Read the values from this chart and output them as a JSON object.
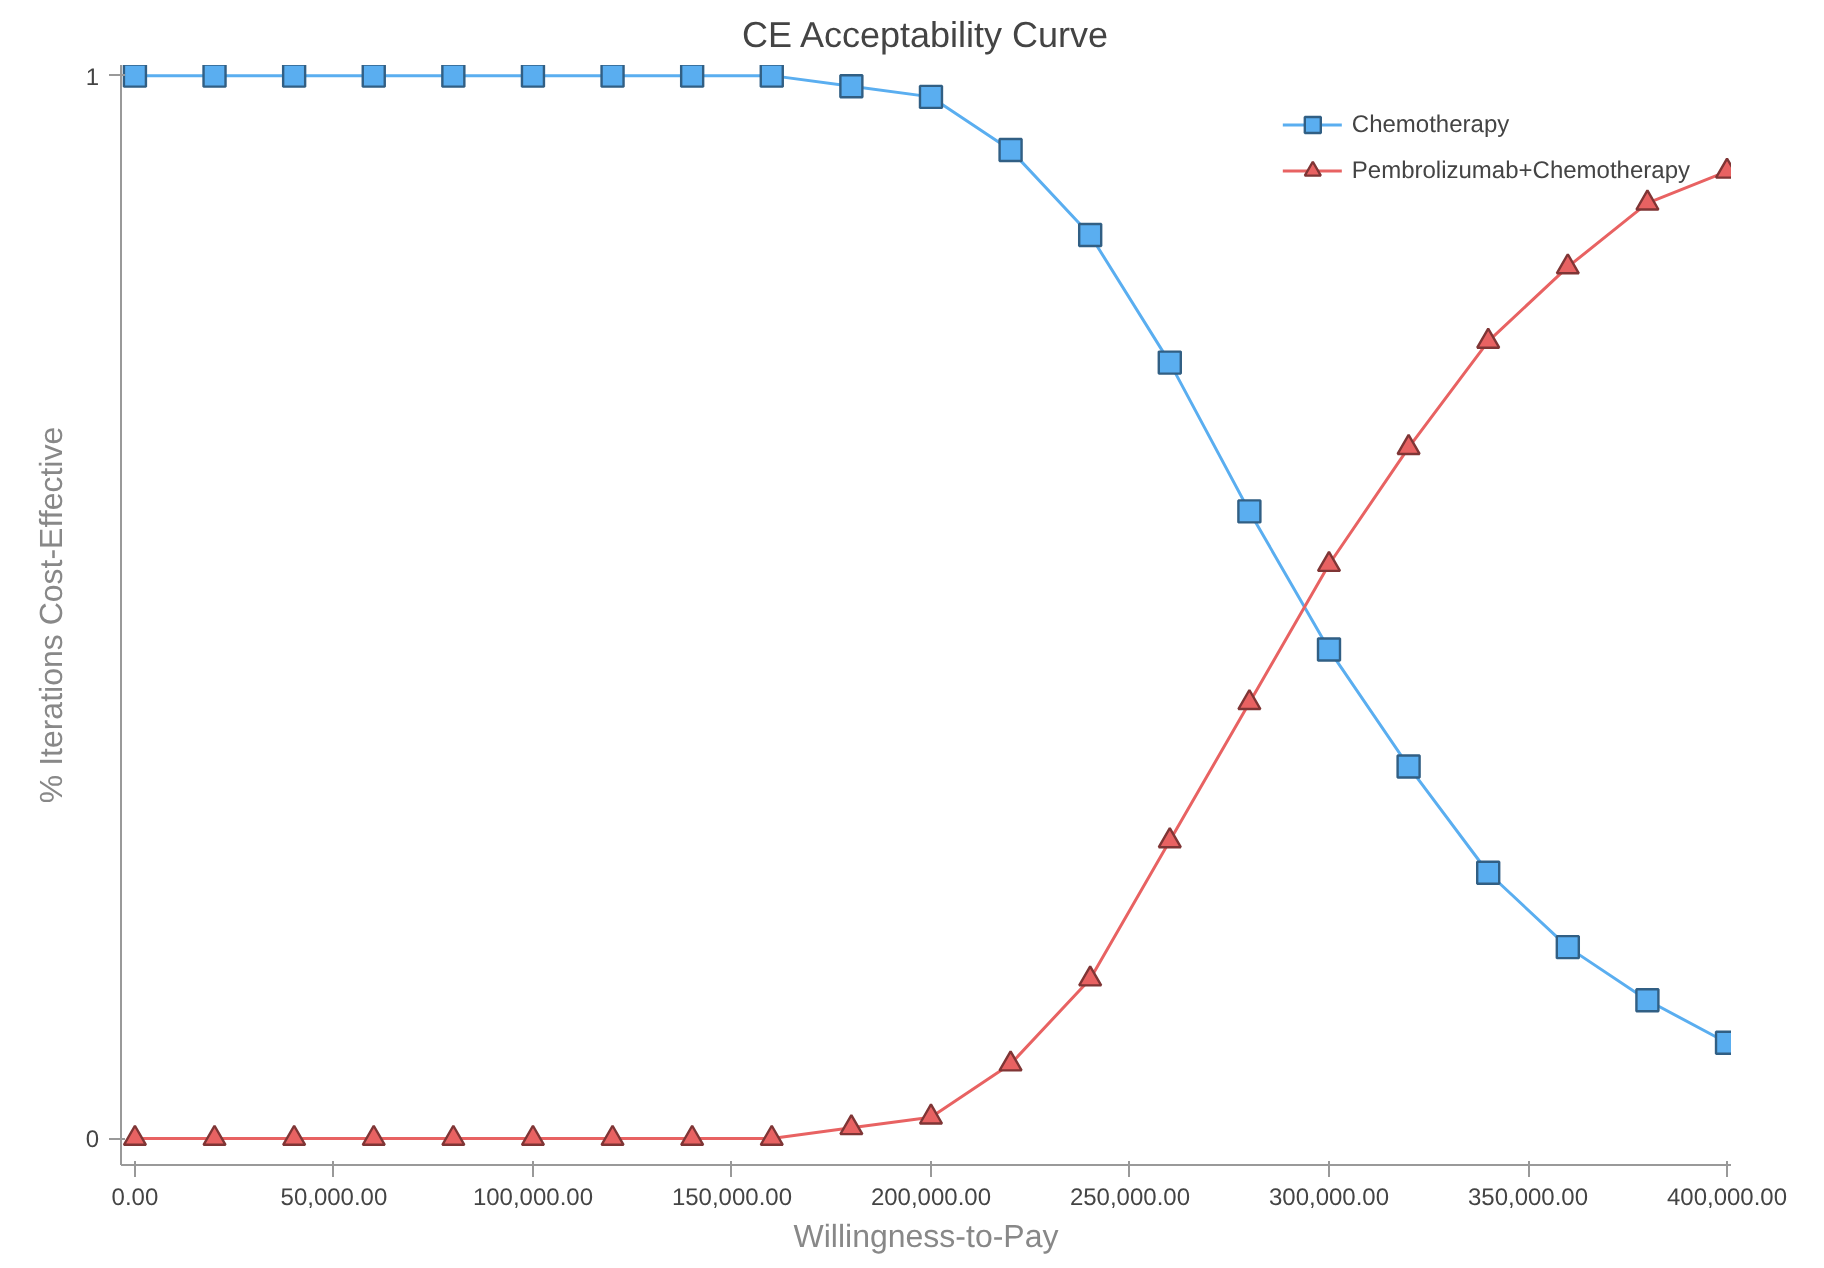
{
  "chart_data": {
    "type": "line",
    "title": "CE Acceptability Curve",
    "xlabel": "Willingness-to-Pay",
    "ylabel": "% Iterations Cost-Effective",
    "x": [
      0,
      20000,
      40000,
      60000,
      80000,
      100000,
      120000,
      140000,
      160000,
      180000,
      200000,
      220000,
      240000,
      260000,
      280000,
      300000,
      320000,
      340000,
      360000,
      380000,
      400000
    ],
    "series": [
      {
        "name": "Chemotherapy",
        "color": "#5aaef0",
        "marker": "square",
        "values": [
          1,
          1,
          1,
          1,
          1,
          1,
          1,
          1,
          1,
          0.99,
          0.98,
          0.93,
          0.85,
          0.73,
          0.59,
          0.46,
          0.35,
          0.25,
          0.18,
          0.13,
          0.09
        ]
      },
      {
        "name": "Pembrolizumab+Chemotherapy",
        "color": "#e86262",
        "marker": "triangle",
        "values": [
          0,
          0,
          0,
          0,
          0,
          0,
          0,
          0,
          0,
          0.01,
          0.02,
          0.07,
          0.15,
          0.28,
          0.41,
          0.54,
          0.65,
          0.75,
          0.82,
          0.88,
          0.91
        ]
      }
    ],
    "xlim": [
      -3500,
      401000
    ],
    "ylim": [
      -0.025,
      1.01
    ],
    "xticks": [
      {
        "value": 0,
        "label": "0.00"
      },
      {
        "value": 50000,
        "label": "50,000.00"
      },
      {
        "value": 100000,
        "label": "100,000.00"
      },
      {
        "value": 150000,
        "label": "150,000.00"
      },
      {
        "value": 200000,
        "label": "200,000.00"
      },
      {
        "value": 250000,
        "label": "250,000.00"
      },
      {
        "value": 300000,
        "label": "300,000.00"
      },
      {
        "value": 350000,
        "label": "350,000.00"
      },
      {
        "value": 400000,
        "label": "400,000.00"
      }
    ],
    "yticks": [
      0,
      1
    ],
    "grid": false,
    "legend": "top right",
    "line_style": "solid"
  }
}
